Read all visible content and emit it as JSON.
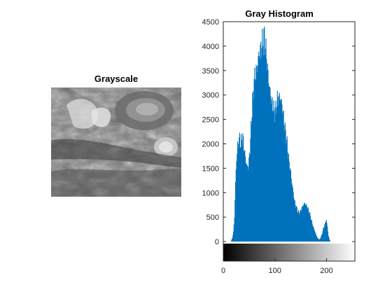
{
  "figure": {
    "background": "#ffffff"
  },
  "left_panel": {
    "title": "Grayscale"
  },
  "chart_data": {
    "type": "bar",
    "title": "Gray Histogram",
    "xlabel": "",
    "ylabel": "",
    "color": "#0072BD",
    "xlim": [
      0,
      255
    ],
    "ylim": [
      -400,
      4500
    ],
    "yticks": [
      0,
      500,
      1000,
      1500,
      2000,
      2500,
      3000,
      3500,
      4000,
      4500
    ],
    "xticks": [
      0,
      100,
      200
    ],
    "colorbar": "gray",
    "profile": [
      [
        0,
        0
      ],
      [
        14,
        0
      ],
      [
        17,
        80
      ],
      [
        19,
        200
      ],
      [
        21,
        500
      ],
      [
        23,
        1200
      ],
      [
        25,
        1700
      ],
      [
        27,
        1950
      ],
      [
        29,
        2050
      ],
      [
        31,
        2100
      ],
      [
        33,
        2000
      ],
      [
        35,
        2080
      ],
      [
        37,
        2150
      ],
      [
        39,
        1950
      ],
      [
        41,
        1800
      ],
      [
        43,
        1650
      ],
      [
        45,
        1550
      ],
      [
        47,
        1500
      ],
      [
        49,
        1650
      ],
      [
        51,
        1900
      ],
      [
        53,
        2300
      ],
      [
        55,
        2700
      ],
      [
        57,
        3000
      ],
      [
        59,
        3300
      ],
      [
        61,
        3400
      ],
      [
        63,
        3500
      ],
      [
        65,
        3550
      ],
      [
        67,
        3750
      ],
      [
        69,
        3850
      ],
      [
        71,
        3900
      ],
      [
        73,
        4000
      ],
      [
        75,
        4050
      ],
      [
        77,
        4100
      ],
      [
        79,
        4200
      ],
      [
        81,
        4000
      ],
      [
        83,
        3800
      ],
      [
        85,
        3550
      ],
      [
        87,
        3300
      ],
      [
        89,
        3150
      ],
      [
        91,
        3000
      ],
      [
        93,
        2850
      ],
      [
        95,
        2800
      ],
      [
        97,
        2700
      ],
      [
        99,
        2650
      ],
      [
        101,
        2700
      ],
      [
        103,
        2850
      ],
      [
        105,
        2950
      ],
      [
        107,
        2950
      ],
      [
        109,
        2950
      ],
      [
        111,
        2900
      ],
      [
        113,
        2800
      ],
      [
        115,
        2650
      ],
      [
        117,
        2450
      ],
      [
        119,
        2300
      ],
      [
        121,
        2150
      ],
      [
        123,
        2000
      ],
      [
        125,
        1800
      ],
      [
        127,
        1600
      ],
      [
        129,
        1500
      ],
      [
        131,
        1300
      ],
      [
        133,
        1150
      ],
      [
        135,
        1000
      ],
      [
        137,
        850
      ],
      [
        139,
        750
      ],
      [
        141,
        700
      ],
      [
        143,
        640
      ],
      [
        145,
        600
      ],
      [
        147,
        590
      ],
      [
        149,
        620
      ],
      [
        151,
        680
      ],
      [
        153,
        720
      ],
      [
        155,
        760
      ],
      [
        157,
        780
      ],
      [
        159,
        760
      ],
      [
        161,
        720
      ],
      [
        163,
        680
      ],
      [
        165,
        630
      ],
      [
        167,
        560
      ],
      [
        169,
        480
      ],
      [
        171,
        400
      ],
      [
        173,
        320
      ],
      [
        175,
        260
      ],
      [
        177,
        200
      ],
      [
        179,
        140
      ],
      [
        181,
        90
      ],
      [
        183,
        60
      ],
      [
        185,
        40
      ],
      [
        187,
        60
      ],
      [
        189,
        110
      ],
      [
        191,
        170
      ],
      [
        193,
        260
      ],
      [
        195,
        320
      ],
      [
        197,
        380
      ],
      [
        199,
        450
      ],
      [
        201,
        300
      ],
      [
        203,
        120
      ],
      [
        205,
        40
      ],
      [
        207,
        0
      ],
      [
        255,
        0
      ]
    ]
  }
}
